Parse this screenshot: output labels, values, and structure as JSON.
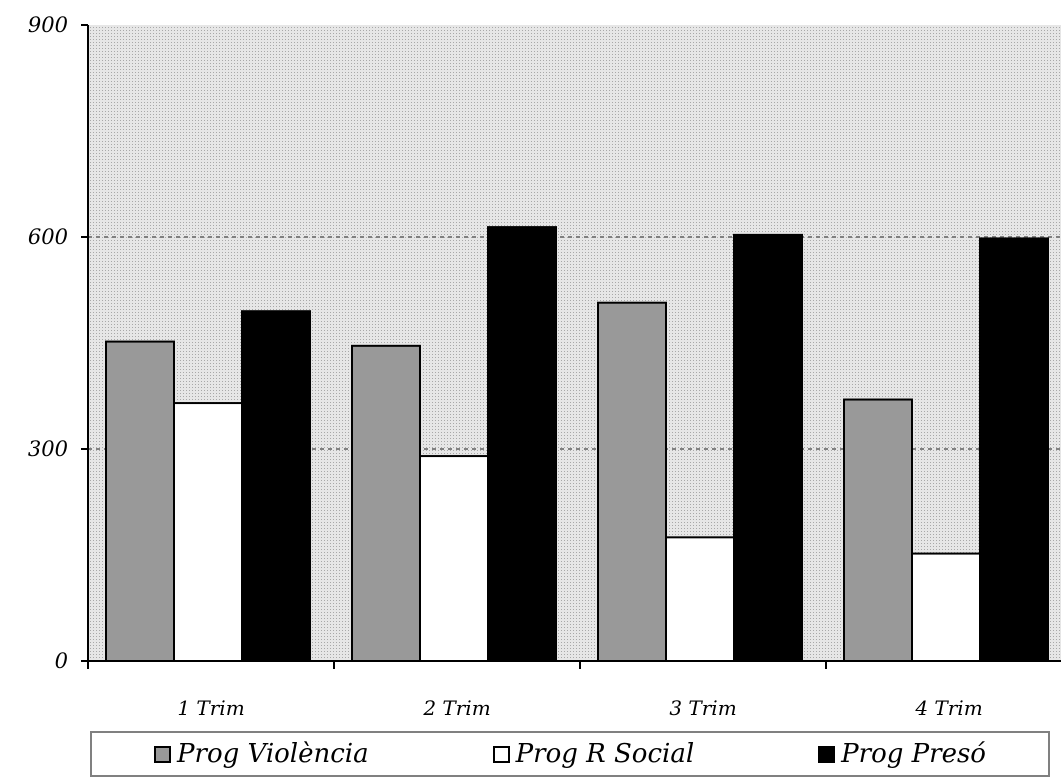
{
  "chart_data": {
    "type": "bar",
    "title": "",
    "xlabel": "",
    "ylabel": "",
    "categories": [
      "1 Trim",
      "2 Trim",
      "3 Trim",
      "4 Trim"
    ],
    "yticks": [
      "0",
      "300",
      "600",
      "900"
    ],
    "ylim": [
      0,
      900
    ],
    "grid": "dotted lines at 300 and 600",
    "legend_position": "bottom",
    "plot_background": "dotted-gray",
    "series": [
      {
        "name": "Prog Violència",
        "color": "#999999",
        "values": [
          452,
          446,
          507,
          370
        ]
      },
      {
        "name": "Prog R Social",
        "color": "#ffffff",
        "values": [
          365,
          290,
          175,
          152
        ]
      },
      {
        "name": "Prog Presó",
        "color": "#000000",
        "values": [
          495,
          614,
          603,
          598
        ]
      }
    ]
  }
}
